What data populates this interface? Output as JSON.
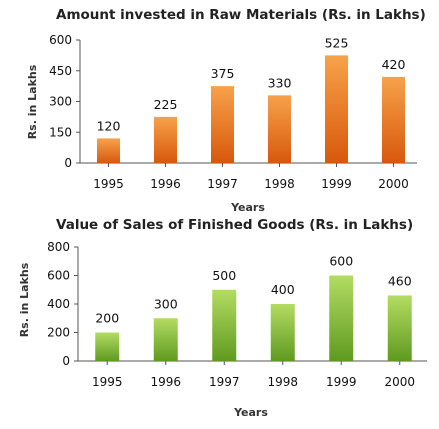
{
  "chart_data": [
    {
      "type": "bar",
      "title": "Amount invested in Raw Materials (Rs. in Lakhs)",
      "xlabel": "Years",
      "ylabel": "Rs. in Lakhs",
      "categories": [
        "1995",
        "1996",
        "1997",
        "1998",
        "1999",
        "2000"
      ],
      "values": [
        120,
        225,
        375,
        330,
        525,
        420
      ],
      "ylim": [
        0,
        600
      ],
      "yticks": [
        0,
        150,
        300,
        450,
        600
      ],
      "grid": false,
      "bar_color_top": "#f7a24b",
      "bar_color_bottom": "#d8580c"
    },
    {
      "type": "bar",
      "title": "Value of Sales of Finished Goods (Rs. in Lakhs)",
      "xlabel": "Years",
      "ylabel": "Rs. in Lakhs",
      "categories": [
        "1995",
        "1996",
        "1997",
        "1998",
        "1999",
        "2000"
      ],
      "values": [
        200,
        300,
        500,
        400,
        600,
        460
      ],
      "ylim": [
        0,
        800
      ],
      "yticks": [
        0,
        200,
        400,
        600,
        800
      ],
      "grid": false,
      "bar_color_top": "#b3dc62",
      "bar_color_bottom": "#5f9a1f"
    }
  ]
}
